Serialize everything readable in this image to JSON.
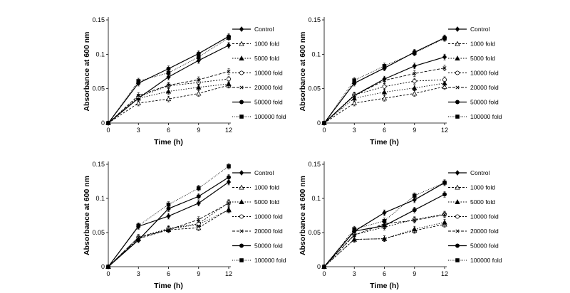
{
  "figure": {
    "styles": [
      {
        "name": "Control",
        "dash": "",
        "width": 1.2,
        "marker": "diamond",
        "fill": true
      },
      {
        "name": "1000 fold",
        "dash": "3,2",
        "width": 0.9,
        "marker": "triangle",
        "fill": false
      },
      {
        "name": "5000 fold",
        "dash": "1.5,2",
        "width": 0.9,
        "marker": "triangle",
        "fill": true
      },
      {
        "name": "10000 fold",
        "dash": "2,2",
        "width": 0.9,
        "marker": "circle",
        "fill": false
      },
      {
        "name": "20000 fold",
        "dash": "4,2",
        "width": 0.9,
        "marker": "x",
        "fill": false
      },
      {
        "name": "50000 fold",
        "dash": "",
        "width": 1.2,
        "marker": "circle",
        "fill": true
      },
      {
        "name": "100000 fold",
        "dash": "1,1.5",
        "width": 0.9,
        "marker": "square",
        "fill": true
      }
    ]
  },
  "chart_data": [
    {
      "type": "line",
      "xlabel": "Time (h)",
      "ylabel": "Absorbance at 600 nm",
      "x": [
        0,
        3,
        6,
        9,
        12
      ],
      "xticks": [
        "0",
        "3",
        "6",
        "9",
        "12"
      ],
      "yticks": [
        "0",
        "0.05",
        "0.1",
        "0.15"
      ],
      "xlim": [
        0,
        12
      ],
      "ylim": [
        0,
        0.15
      ],
      "legend_position": "right",
      "series": [
        {
          "name": "Control",
          "values": [
            0,
            0.036,
            0.067,
            0.091,
            0.113
          ]
        },
        {
          "name": "1000 fold",
          "values": [
            0,
            0.029,
            0.035,
            0.043,
            0.055
          ]
        },
        {
          "name": "5000 fold",
          "values": [
            0,
            0.036,
            0.046,
            0.052,
            0.057
          ]
        },
        {
          "name": "10000 fold",
          "values": [
            0,
            0.038,
            0.054,
            0.059,
            0.064
          ]
        },
        {
          "name": "20000 fold",
          "values": [
            0,
            0.04,
            0.055,
            0.063,
            0.075
          ]
        },
        {
          "name": "50000 fold",
          "values": [
            0,
            0.058,
            0.079,
            0.101,
            0.126
          ]
        },
        {
          "name": "100000 fold",
          "values": [
            0,
            0.061,
            0.073,
            0.096,
            0.124
          ]
        }
      ]
    },
    {
      "type": "line",
      "xlabel": "Time (h)",
      "ylabel": "Absorbance at 600 nm",
      "x": [
        0,
        3,
        6,
        9,
        12
      ],
      "xticks": [
        "0",
        "3",
        "6",
        "9",
        "12"
      ],
      "yticks": [
        "0",
        "0.05",
        "0.1",
        "0.15"
      ],
      "xlim": [
        0,
        12
      ],
      "ylim": [
        0,
        0.15
      ],
      "legend_position": "right",
      "series": [
        {
          "name": "Control",
          "values": [
            0,
            0.04,
            0.064,
            0.083,
            0.096
          ]
        },
        {
          "name": "1000 fold",
          "values": [
            0,
            0.029,
            0.036,
            0.043,
            0.053
          ]
        },
        {
          "name": "5000 fold",
          "values": [
            0,
            0.036,
            0.045,
            0.051,
            0.058
          ]
        },
        {
          "name": "10000 fold",
          "values": [
            0,
            0.041,
            0.053,
            0.061,
            0.063
          ]
        },
        {
          "name": "20000 fold",
          "values": [
            0,
            0.04,
            0.062,
            0.072,
            0.08
          ]
        },
        {
          "name": "50000 fold",
          "values": [
            0,
            0.058,
            0.08,
            0.103,
            0.124
          ]
        },
        {
          "name": "100000 fold",
          "values": [
            0,
            0.062,
            0.083,
            0.102,
            0.123
          ]
        }
      ]
    },
    {
      "type": "line",
      "xlabel": "Time (h)",
      "ylabel": "Absorbance at 600 nm",
      "x": [
        0,
        3,
        6,
        9,
        12
      ],
      "xticks": [
        "0",
        "3",
        "6",
        "9",
        "12"
      ],
      "yticks": [
        "0",
        "0.05",
        "0.1",
        "0.15"
      ],
      "xlim": [
        0,
        12
      ],
      "ylim": [
        0,
        0.15
      ],
      "legend_position": "right",
      "series": [
        {
          "name": "Control",
          "values": [
            0,
            0.059,
            0.074,
            0.093,
            0.124
          ]
        },
        {
          "name": "1000 fold",
          "values": [
            0,
            0.041,
            0.054,
            0.057,
            0.084
          ]
        },
        {
          "name": "5000 fold",
          "values": [
            0,
            0.041,
            0.055,
            0.062,
            0.083
          ]
        },
        {
          "name": "10000 fold",
          "values": [
            0,
            0.043,
            0.056,
            0.063,
            0.094
          ]
        },
        {
          "name": "20000 fold",
          "values": [
            0,
            0.043,
            0.054,
            0.069,
            0.093
          ]
        },
        {
          "name": "50000 fold",
          "values": [
            0,
            0.039,
            0.085,
            0.103,
            0.131
          ]
        },
        {
          "name": "100000 fold",
          "values": [
            0,
            0.06,
            0.091,
            0.115,
            0.147
          ]
        }
      ]
    },
    {
      "type": "line",
      "xlabel": "Time (h)",
      "ylabel": "Absorbance at 600 nm",
      "x": [
        0,
        3,
        6,
        9,
        12
      ],
      "xticks": [
        "0",
        "3",
        "6",
        "9",
        "12"
      ],
      "yticks": [
        "0",
        "0.05",
        "0.1",
        "0.15"
      ],
      "xlim": [
        0,
        12
      ],
      "ylim": [
        0,
        0.15
      ],
      "legend_position": "right",
      "series": [
        {
          "name": "Control",
          "values": [
            0,
            0.052,
            0.079,
            0.098,
            0.123
          ]
        },
        {
          "name": "1000 fold",
          "values": [
            0,
            0.04,
            0.041,
            0.053,
            0.062
          ]
        },
        {
          "name": "5000 fold",
          "values": [
            0,
            0.04,
            0.041,
            0.055,
            0.065
          ]
        },
        {
          "name": "10000 fold",
          "values": [
            0,
            0.047,
            0.058,
            0.069,
            0.077
          ]
        },
        {
          "name": "20000 fold",
          "values": [
            0,
            0.046,
            0.063,
            0.068,
            0.076
          ]
        },
        {
          "name": "50000 fold",
          "values": [
            0,
            0.052,
            0.06,
            0.083,
            0.106
          ]
        },
        {
          "name": "100000 fold",
          "values": [
            0,
            0.055,
            0.067,
            0.104,
            0.123
          ]
        }
      ]
    }
  ]
}
